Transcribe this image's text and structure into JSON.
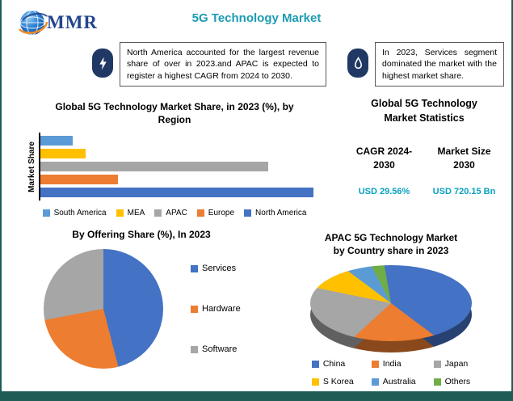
{
  "page": {
    "title": "5G Technology Market",
    "logo_text": "MMR"
  },
  "callouts": {
    "left": "North America accounted for the largest revenue share of over in 2023.and APAC is expected to register a highest CAGR from 2024 to 2030.",
    "right": "In 2023, Services segment dominated the market with the highest market share."
  },
  "stats": {
    "title": "Global 5G Technology Market Statistics",
    "columns": [
      {
        "label": "CAGR 2024-2030",
        "value": "USD 29.56%"
      },
      {
        "label": "Market Size 2030",
        "value": "USD 720.15 Bn"
      }
    ]
  },
  "chart_data": [
    {
      "id": "region_share_bar",
      "type": "bar",
      "orientation": "horizontal",
      "title": "Global 5G Technology Market Share, in 2023 (%), by Region",
      "xlabel": "",
      "ylabel": "Market Share",
      "categories": [
        "South America",
        "MEA",
        "APAC",
        "Europe",
        "North America"
      ],
      "values": [
        5,
        7,
        35,
        12,
        42
      ],
      "unit": "%",
      "colors": [
        "#5b9bd5",
        "#ffc000",
        "#a6a6a6",
        "#ed7d31",
        "#4472c4"
      ],
      "legend_position": "bottom",
      "grid": false
    },
    {
      "id": "offering_pie",
      "type": "pie",
      "title": "By Offering Share (%), In 2023",
      "categories": [
        "Services",
        "Hardware",
        "Software"
      ],
      "values": [
        46,
        26,
        28
      ],
      "unit": "%",
      "colors": [
        "#4472c4",
        "#ed7d31",
        "#a6a6a6"
      ],
      "legend_position": "right",
      "start_angle": 0
    },
    {
      "id": "apac_pie",
      "type": "pie",
      "style": "3d",
      "title": "APAC 5G Technology Market by Country share in 2023",
      "categories": [
        "China",
        "India",
        "Japan",
        "S Korea",
        "Australia",
        "Others"
      ],
      "values": [
        38,
        28,
        15,
        7,
        7,
        5
      ],
      "unit": "%",
      "colors": [
        "#4472c4",
        "#ed7d31",
        "#a6a6a6",
        "#ffc000",
        "#5b9bd5",
        "#70ad47"
      ],
      "legend_position": "bottom",
      "start_angle": -10
    }
  ],
  "theme": {
    "title_color": "#1b9cb4",
    "stat_value_color": "#08a1be",
    "frame_color": "#1e5c55",
    "icon_bg": "#203864",
    "axis_color": "#000000"
  }
}
